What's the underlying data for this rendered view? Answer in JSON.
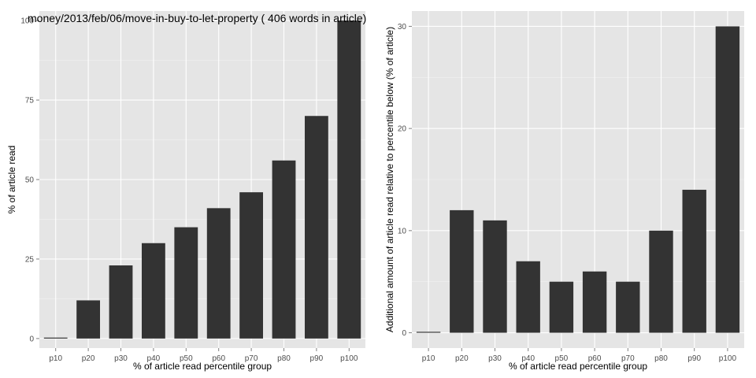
{
  "chart_data": [
    {
      "type": "bar",
      "title": "money/2013/feb/06/move-in-buy-to-let-property ( 406 words in article)",
      "xlabel": "% of article read percentile group",
      "ylabel": "% of article read",
      "categories": [
        "p10",
        "p20",
        "p30",
        "p40",
        "p50",
        "p60",
        "p70",
        "p80",
        "p90",
        "p100"
      ],
      "values": [
        0,
        12,
        23,
        30,
        35,
        41,
        46,
        56,
        70,
        100
      ],
      "ylim": [
        -3,
        103
      ],
      "yticks": [
        0,
        25,
        50,
        75,
        100
      ],
      "grid": true,
      "colors": {
        "panel": "#e5e5e5",
        "grid": "#ffffff",
        "bar": "#333333",
        "tick_text": "#4d4d4d",
        "label_text": "#000000"
      }
    },
    {
      "type": "bar",
      "title": "",
      "xlabel": "% of article read percentile group",
      "ylabel": "Additional amount of article read relative to percentile below (% of article)",
      "categories": [
        "p10",
        "p20",
        "p30",
        "p40",
        "p50",
        "p60",
        "p70",
        "p80",
        "p90",
        "p100"
      ],
      "values": [
        0,
        12,
        11,
        7,
        5,
        6,
        5,
        10,
        14,
        30
      ],
      "ylim": [
        -1.5,
        31.5
      ],
      "yticks": [
        0,
        10,
        20,
        30
      ],
      "grid": true,
      "colors": {
        "panel": "#e5e5e5",
        "grid": "#ffffff",
        "bar": "#333333",
        "tick_text": "#4d4d4d",
        "label_text": "#000000"
      }
    }
  ]
}
